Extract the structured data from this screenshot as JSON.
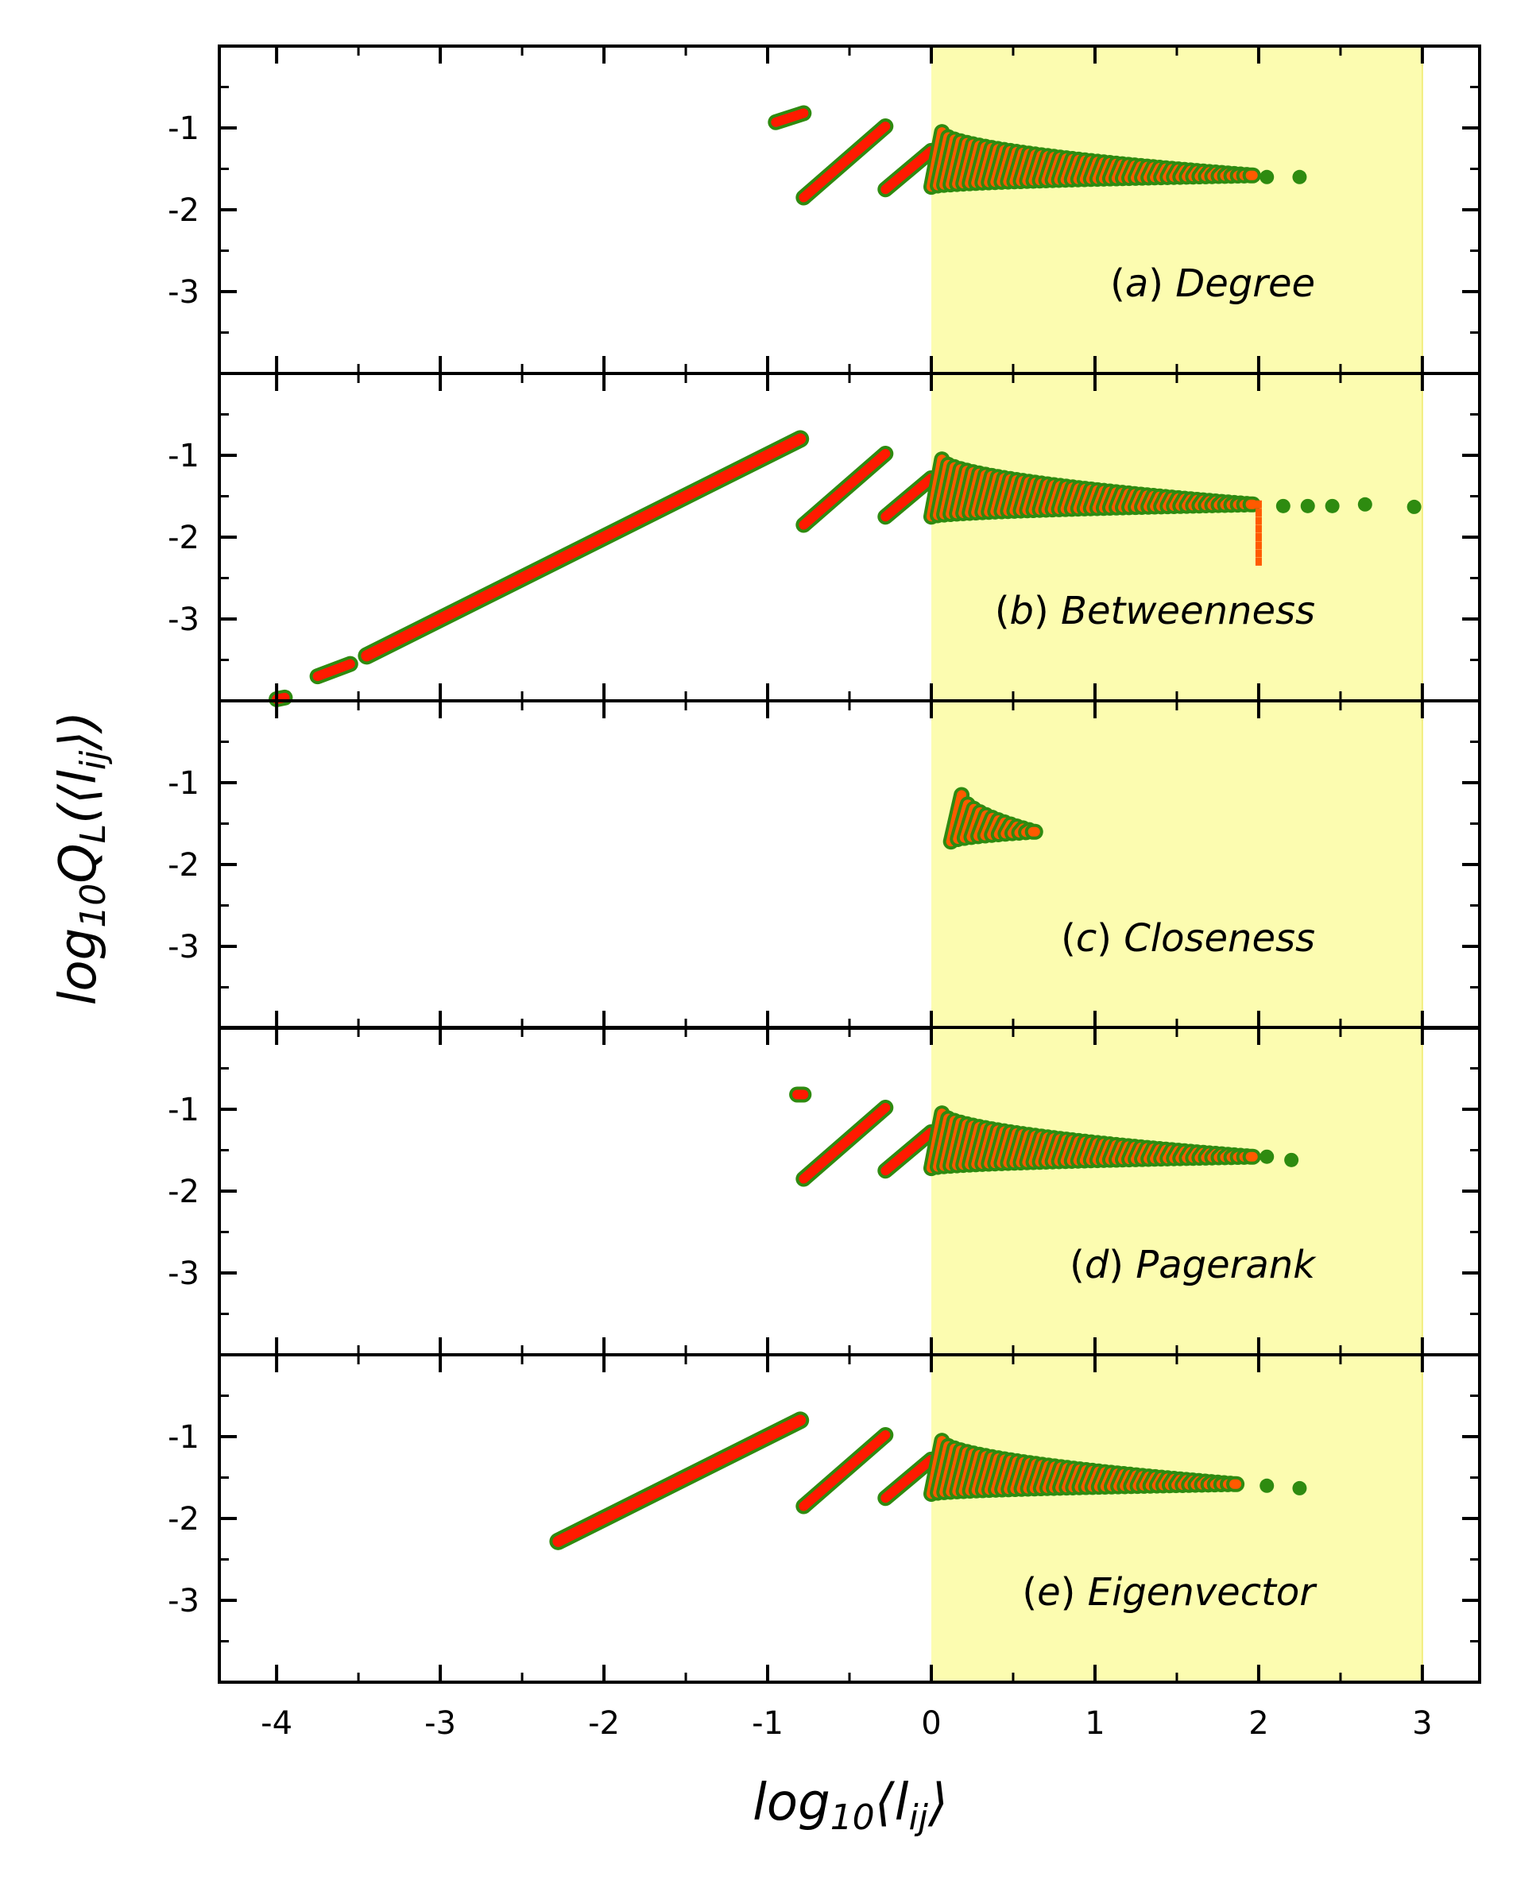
{
  "chart_data": {
    "type": "scatter",
    "xlabel": "log10⟨lij⟩",
    "ylabel": "log10QL(⟨lij⟩)",
    "xlim": [
      -4.35,
      3.35
    ],
    "ylim": [
      -4.0,
      0.0
    ],
    "xticks": [
      -4,
      -3,
      -2,
      -1,
      0,
      1,
      2,
      3
    ],
    "xtick_labels": [
      "-4",
      "-3",
      "-2",
      "-1",
      "0",
      "1",
      "2",
      "3"
    ],
    "yticks": [
      -1,
      -2,
      -3
    ],
    "ytick_labels": [
      "-1",
      "-2",
      "-3"
    ],
    "highlight_band": {
      "x_from": 0,
      "x_to": 3,
      "color": "#fcfcb0"
    },
    "series_colors": {
      "outer": "#2e8b10",
      "inner": "#ff1a00",
      "inner_shaded": "#ff5a00"
    },
    "panels": [
      {
        "label": "(a) Degree",
        "label_letter": "(a)",
        "label_name": "Degree",
        "segments": [
          {
            "x0": -0.95,
            "y0": -0.93,
            "x1": -0.78,
            "y1": -0.82
          },
          {
            "x0": -0.78,
            "y0": -1.85,
            "x1": -0.28,
            "y1": -0.98
          },
          {
            "x0": -0.28,
            "y0": -1.75,
            "x1": 0.0,
            "y1": -1.28
          }
        ],
        "fans": [
          {
            "x_start": 0.0,
            "x_end": 1.95,
            "y_top": -1.05,
            "y_bottom": -1.72,
            "y_converge": -1.58,
            "tail_points": [
              [
                2.05,
                -1.6
              ],
              [
                2.25,
                -1.6
              ]
            ]
          }
        ]
      },
      {
        "label": "(b) Betweenness",
        "label_letter": "(b)",
        "label_name": "Betweenness",
        "segments": [
          {
            "x0": -3.45,
            "y0": -3.45,
            "x1": -0.8,
            "y1": -0.8
          },
          {
            "x0": -3.75,
            "y0": -3.7,
            "x1": -3.55,
            "y1": -3.55
          },
          {
            "x0": -4.0,
            "y0": -3.98,
            "x1": -3.95,
            "y1": -3.96
          },
          {
            "x0": -0.78,
            "y0": -1.85,
            "x1": -0.28,
            "y1": -0.98
          },
          {
            "x0": -0.28,
            "y0": -1.75,
            "x1": 0.0,
            "y1": -1.28
          }
        ],
        "fans": [
          {
            "x_start": 0.0,
            "x_end": 1.95,
            "y_top": -1.05,
            "y_bottom": -1.75,
            "y_converge": -1.6,
            "tail_points": [
              [
                2.15,
                -1.62
              ],
              [
                2.3,
                -1.62
              ],
              [
                2.45,
                -1.62
              ],
              [
                2.65,
                -1.6
              ],
              [
                2.95,
                -1.63
              ]
            ]
          }
        ],
        "drop": {
          "x": 2.0,
          "y_from": -1.6,
          "y_to": -2.35
        }
      },
      {
        "label": "(c) Closeness",
        "label_letter": "(c)",
        "label_name": "Closeness",
        "segments": [],
        "fans": [
          {
            "x_start": 0.12,
            "x_end": 0.62,
            "y_top": -1.15,
            "y_bottom": -1.72,
            "y_converge": -1.6,
            "tail_points": []
          }
        ]
      },
      {
        "label": "(d) Pagerank",
        "label_letter": "(d)",
        "label_name": "Pagerank",
        "segments": [
          {
            "x0": -0.82,
            "y0": -0.82,
            "x1": -0.78,
            "y1": -0.82
          },
          {
            "x0": -0.78,
            "y0": -1.85,
            "x1": -0.28,
            "y1": -0.98
          },
          {
            "x0": -0.28,
            "y0": -1.75,
            "x1": 0.0,
            "y1": -1.28
          }
        ],
        "fans": [
          {
            "x_start": 0.0,
            "x_end": 1.95,
            "y_top": -1.05,
            "y_bottom": -1.72,
            "y_converge": -1.58,
            "tail_points": [
              [
                2.05,
                -1.58
              ],
              [
                2.2,
                -1.62
              ]
            ]
          }
        ]
      },
      {
        "label": "(e) Eigenvector",
        "label_letter": "(e)",
        "label_name": "Eigenvector",
        "segments": [
          {
            "x0": -2.28,
            "y0": -2.28,
            "x1": -0.8,
            "y1": -0.8
          },
          {
            "x0": -0.78,
            "y0": -1.85,
            "x1": -0.28,
            "y1": -0.98
          },
          {
            "x0": -0.28,
            "y0": -1.75,
            "x1": 0.0,
            "y1": -1.28
          }
        ],
        "fans": [
          {
            "x_start": 0.0,
            "x_end": 1.85,
            "y_top": -1.05,
            "y_bottom": -1.7,
            "y_converge": -1.58,
            "tail_points": [
              [
                2.05,
                -1.6
              ],
              [
                2.25,
                -1.63
              ]
            ]
          }
        ]
      }
    ]
  }
}
